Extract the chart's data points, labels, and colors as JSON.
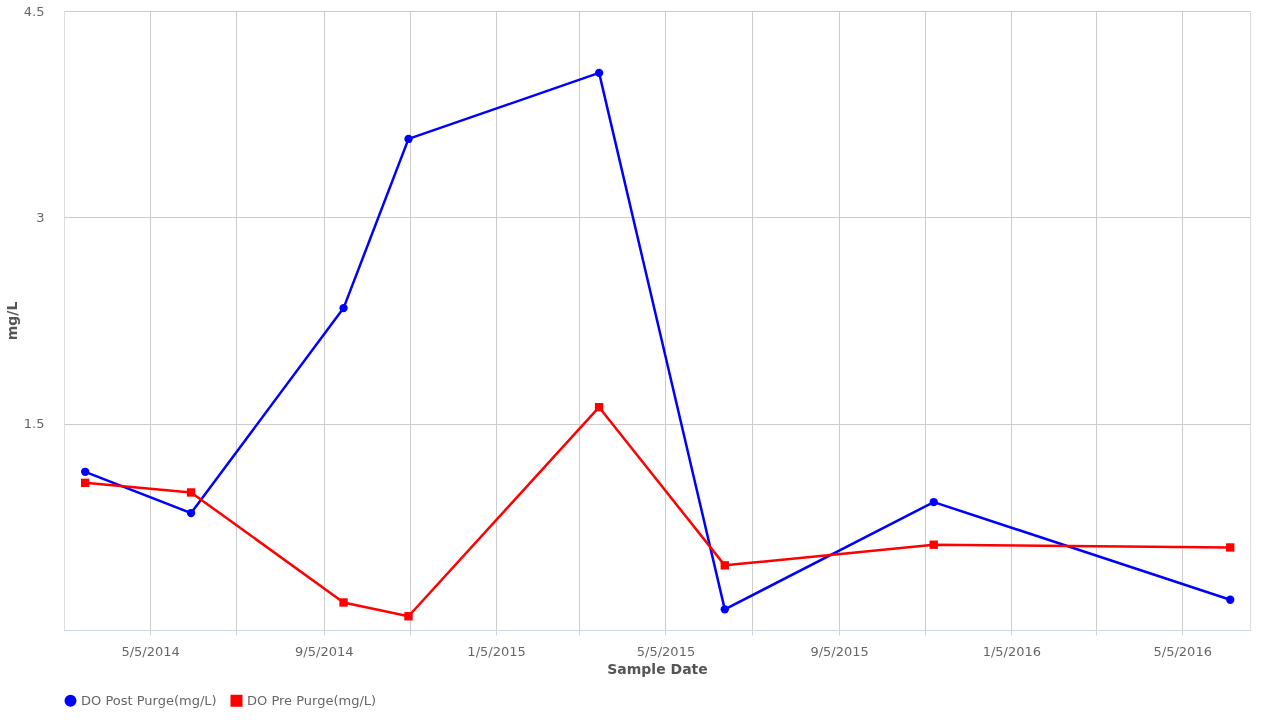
{
  "chart_data": {
    "type": "line",
    "xlabel": "Sample Date",
    "ylabel": "mg/L",
    "x": [
      "2014-03-20",
      "2014-06-03",
      "2014-09-19",
      "2014-11-04",
      "2015-03-19",
      "2015-06-16",
      "2015-11-11",
      "2016-06-08"
    ],
    "series": [
      {
        "name": "DO Post Purge(mg/L)",
        "color": "#0000ff",
        "marker": "circle",
        "values": [
          1.15,
          0.85,
          2.34,
          3.57,
          4.05,
          0.15,
          0.93,
          0.22
        ]
      },
      {
        "name": "DO Pre Purge(mg/L)",
        "color": "#ff0000",
        "marker": "square",
        "values": [
          1.07,
          1.0,
          0.2,
          0.1,
          1.62,
          0.47,
          0.62,
          0.6
        ]
      }
    ],
    "xlim": [
      "2014-03-05",
      "2016-06-22"
    ],
    "xticks": [
      {
        "value": "2014-05-05",
        "label": "5/5/2014"
      },
      {
        "value": "2014-07-05",
        "label": null
      },
      {
        "value": "2014-09-05",
        "label": "9/5/2014"
      },
      {
        "value": "2014-11-05",
        "label": null
      },
      {
        "value": "2015-01-05",
        "label": "1/5/2015"
      },
      {
        "value": "2015-03-05",
        "label": null
      },
      {
        "value": "2015-05-05",
        "label": "5/5/2015"
      },
      {
        "value": "2015-07-05",
        "label": null
      },
      {
        "value": "2015-09-05",
        "label": "9/5/2015"
      },
      {
        "value": "2015-11-05",
        "label": null
      },
      {
        "value": "2016-01-05",
        "label": "1/5/2016"
      },
      {
        "value": "2016-03-05",
        "label": null
      },
      {
        "value": "2016-05-05",
        "label": "5/5/2016"
      }
    ],
    "ylim": [
      0,
      4.5
    ],
    "yticks": [
      1.5,
      3,
      4.5
    ],
    "grid": true,
    "legend": "bottom left",
    "line_style": "solid"
  }
}
